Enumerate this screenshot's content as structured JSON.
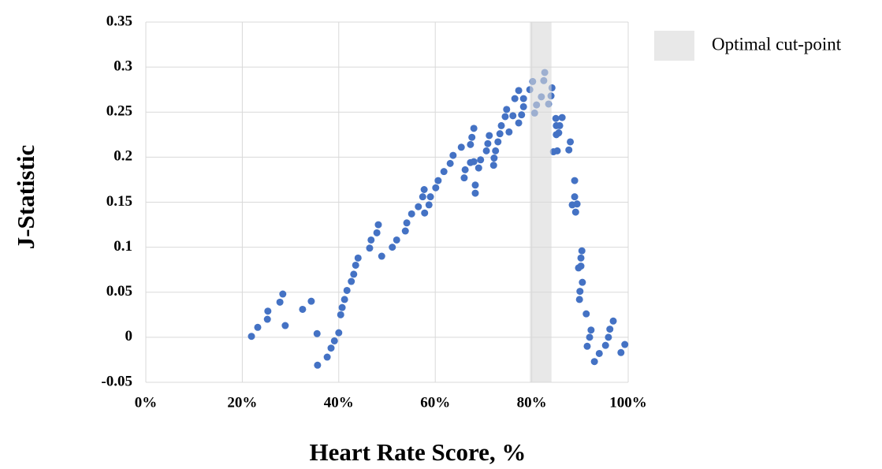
{
  "chart_data": {
    "type": "scatter",
    "x_label": "Heart Rate Score, %",
    "y_label": "J-Statistic",
    "color": "#4472c4",
    "x": [
      21.9,
      23.2,
      25.2,
      25.3,
      27.8,
      28.4,
      28.9,
      32.5,
      34.3,
      35.5,
      35.6,
      37.6,
      38.4,
      39.1,
      40.0,
      40.4,
      40.7,
      41.2,
      41.7,
      42.6,
      43.1,
      43.5,
      44.0,
      46.4,
      46.7,
      47.9,
      48.2,
      48.9,
      51.1,
      52.0,
      53.8,
      54.1,
      55.1,
      56.5,
      57.4,
      57.7,
      57.8,
      58.7,
      59.0,
      60.1,
      60.6,
      61.8,
      63.1,
      63.7,
      65.4,
      66.0,
      66.2,
      67.3,
      67.3,
      67.6,
      68.0,
      68.0,
      68.3,
      68.3,
      69.0,
      69.4,
      70.6,
      70.9,
      71.2,
      72.1,
      72.2,
      72.5,
      73.0,
      73.4,
      73.7,
      74.5,
      74.8,
      75.3,
      76.1,
      76.5,
      77.3,
      77.3,
      77.9,
      78.3,
      78.3,
      79.6,
      80.2,
      80.6,
      81.0,
      82.0,
      82.5,
      82.7,
      83.5,
      84.0,
      84.2,
      84.5,
      85.0,
      85.1,
      85.1,
      85.3,
      85.6,
      85.8,
      86.3,
      87.7,
      88.0,
      88.4,
      88.9,
      88.9,
      89.1,
      89.4,
      89.7,
      89.9,
      90.0,
      90.2,
      90.2,
      90.4,
      90.5,
      91.3,
      91.5,
      92.0,
      92.3,
      93.0,
      94.0,
      95.3,
      95.9,
      96.2,
      96.9,
      98.5,
      99.3
    ],
    "values": [
      0.001,
      0.011,
      0.02,
      0.029,
      0.039,
      0.048,
      0.013,
      0.031,
      0.04,
      0.004,
      -0.031,
      -0.022,
      -0.012,
      -0.004,
      0.005,
      0.025,
      0.033,
      0.042,
      0.052,
      0.062,
      0.07,
      0.08,
      0.088,
      0.099,
      0.108,
      0.116,
      0.125,
      0.09,
      0.1,
      0.108,
      0.118,
      0.127,
      0.137,
      0.145,
      0.156,
      0.164,
      0.138,
      0.147,
      0.156,
      0.166,
      0.174,
      0.184,
      0.193,
      0.202,
      0.211,
      0.177,
      0.186,
      0.194,
      0.214,
      0.222,
      0.232,
      0.195,
      0.169,
      0.16,
      0.188,
      0.197,
      0.207,
      0.215,
      0.224,
      0.191,
      0.199,
      0.207,
      0.217,
      0.226,
      0.235,
      0.245,
      0.253,
      0.228,
      0.246,
      0.265,
      0.274,
      0.238,
      0.247,
      0.256,
      0.265,
      0.275,
      0.284,
      0.249,
      0.258,
      0.267,
      0.285,
      0.294,
      0.259,
      0.268,
      0.277,
      0.206,
      0.243,
      0.235,
      0.225,
      0.207,
      0.227,
      0.235,
      0.244,
      0.208,
      0.217,
      0.147,
      0.174,
      0.156,
      0.139,
      0.148,
      0.077,
      0.042,
      0.051,
      0.079,
      0.088,
      0.096,
      0.061,
      0.026,
      -0.01,
      0.0,
      0.008,
      -0.027,
      -0.018,
      -0.009,
      0.0,
      0.009,
      0.018,
      -0.017,
      -0.008
    ],
    "highlight": {
      "label": "Optimal cut-point",
      "range": [
        79.6,
        84.1
      ],
      "color": "#d9d9d9"
    },
    "xlim": [
      0,
      100
    ],
    "xticks": [
      {
        "value": 0,
        "label": "0%"
      },
      {
        "value": 20,
        "label": "20%"
      },
      {
        "value": 40,
        "label": "40%"
      },
      {
        "value": 60,
        "label": "60%"
      },
      {
        "value": 80,
        "label": "80%"
      },
      {
        "value": 100,
        "label": "100%"
      }
    ],
    "ylim": [
      -0.05,
      0.35
    ],
    "yticks": [
      -0.05,
      0,
      0.05,
      0.1,
      0.15,
      0.2,
      0.25,
      0.3,
      0.35
    ],
    "grid": true
  }
}
